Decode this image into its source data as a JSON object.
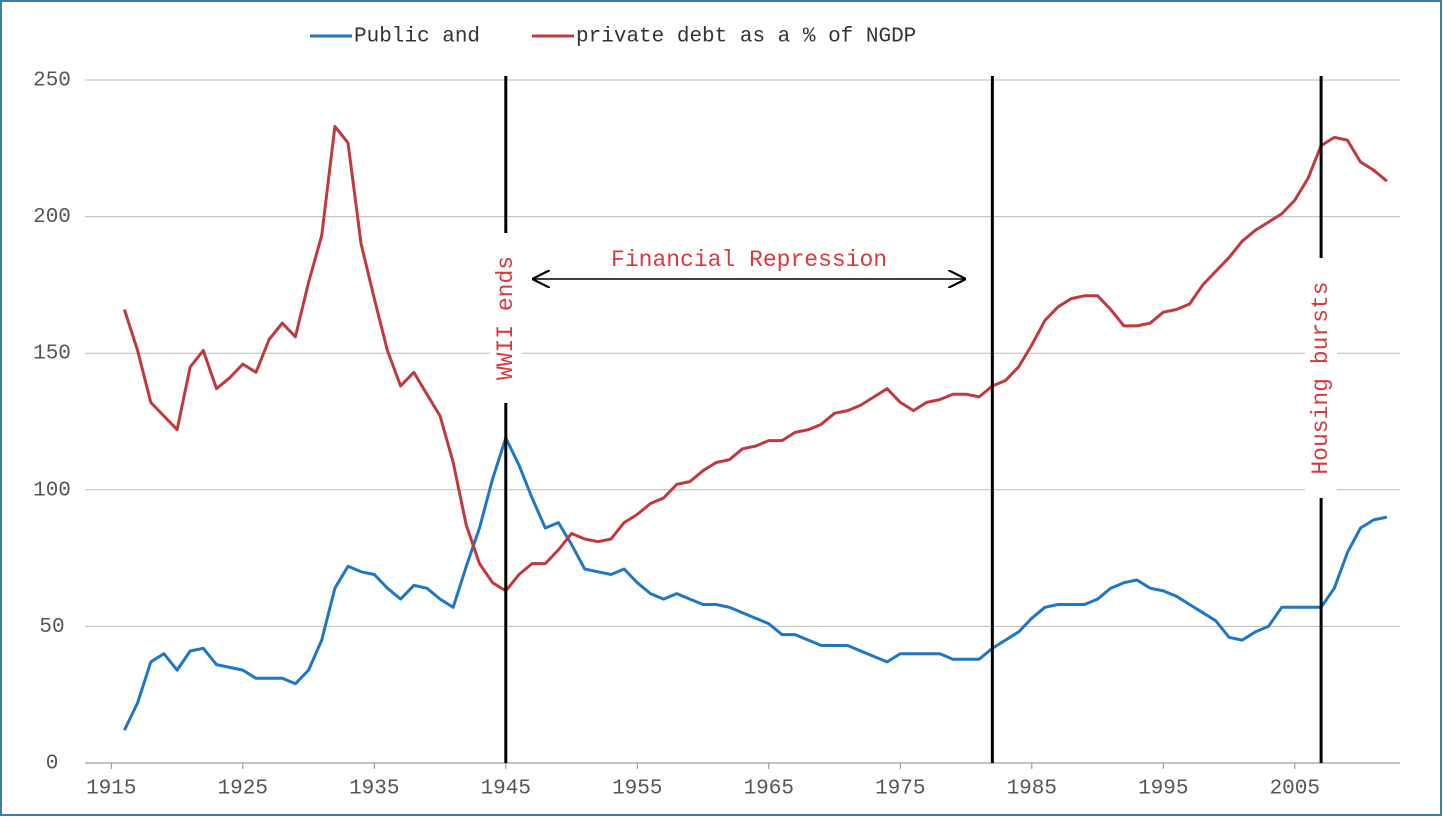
{
  "chart_data": {
    "type": "line",
    "legend_position": "top",
    "grid": true,
    "xlim": [
      1913,
      2013
    ],
    "xticks": [
      1915,
      1925,
      1935,
      1945,
      1955,
      1965,
      1975,
      1985,
      1995,
      2005
    ],
    "ylim": [
      0,
      250
    ],
    "yticks": [
      0,
      50,
      100,
      150,
      200,
      250
    ],
    "x": [
      1916,
      1917,
      1918,
      1919,
      1920,
      1921,
      1922,
      1923,
      1924,
      1925,
      1926,
      1927,
      1928,
      1929,
      1930,
      1931,
      1932,
      1933,
      1934,
      1935,
      1936,
      1937,
      1938,
      1939,
      1940,
      1941,
      1942,
      1943,
      1944,
      1945,
      1946,
      1947,
      1948,
      1949,
      1950,
      1951,
      1952,
      1953,
      1954,
      1955,
      1956,
      1957,
      1958,
      1959,
      1960,
      1961,
      1962,
      1963,
      1964,
      1965,
      1966,
      1967,
      1968,
      1969,
      1970,
      1971,
      1972,
      1973,
      1974,
      1975,
      1976,
      1977,
      1978,
      1979,
      1980,
      1981,
      1982,
      1983,
      1984,
      1985,
      1986,
      1987,
      1988,
      1989,
      1990,
      1991,
      1992,
      1993,
      1994,
      1995,
      1996,
      1997,
      1998,
      1999,
      2000,
      2001,
      2002,
      2003,
      2004,
      2005,
      2006,
      2007,
      2008,
      2009,
      2010,
      2011,
      2012
    ],
    "series": [
      {
        "name": "Public and",
        "color": "#1f77c4",
        "values": [
          12,
          22,
          37,
          40,
          34,
          41,
          42,
          36,
          35,
          34,
          31,
          31,
          31,
          29,
          34,
          45,
          64,
          72,
          70,
          69,
          64,
          60,
          65,
          64,
          60,
          57,
          72,
          86,
          104,
          119,
          109,
          97,
          86,
          88,
          80,
          71,
          70,
          69,
          71,
          66,
          62,
          60,
          62,
          60,
          58,
          58,
          57,
          55,
          53,
          51,
          47,
          47,
          45,
          43,
          43,
          43,
          41,
          39,
          37,
          40,
          40,
          40,
          40,
          38,
          38,
          38,
          42,
          45,
          48,
          53,
          57,
          58,
          58,
          58,
          60,
          64,
          66,
          67,
          64,
          63,
          61,
          58,
          55,
          52,
          46,
          45,
          48,
          50,
          57,
          57,
          57,
          57,
          64,
          77,
          86,
          89,
          90
        ]
      },
      {
        "name": "private debt as a % of NGDP",
        "color": "#c0393f",
        "values": [
          166,
          151,
          132,
          127,
          122,
          145,
          151,
          137,
          141,
          146,
          143,
          155,
          161,
          156,
          176,
          193,
          233,
          227,
          190,
          170,
          151,
          138,
          143,
          135,
          127,
          110,
          87,
          73,
          66,
          63,
          69,
          73,
          73,
          78,
          84,
          82,
          81,
          82,
          88,
          91,
          95,
          97,
          102,
          103,
          107,
          110,
          111,
          115,
          116,
          118,
          118,
          121,
          122,
          124,
          128,
          129,
          131,
          134,
          137,
          132,
          129,
          132,
          133,
          135,
          135,
          134,
          138,
          140,
          145,
          153,
          162,
          167,
          170,
          171,
          171,
          166,
          160,
          160,
          161,
          165,
          166,
          168,
          175,
          180,
          185,
          191,
          195,
          198,
          201,
          206,
          214,
          226,
          229,
          228,
          220,
          217,
          213
        ]
      }
    ],
    "vlines": [
      1945,
      1982,
      2007
    ],
    "annotations": [
      {
        "text": "WWII ends",
        "x": 1945
      },
      {
        "text": "Financial Repression",
        "x_range": [
          1947,
          1980
        ]
      },
      {
        "text": "Housing bursts",
        "x": 2007
      }
    ]
  }
}
